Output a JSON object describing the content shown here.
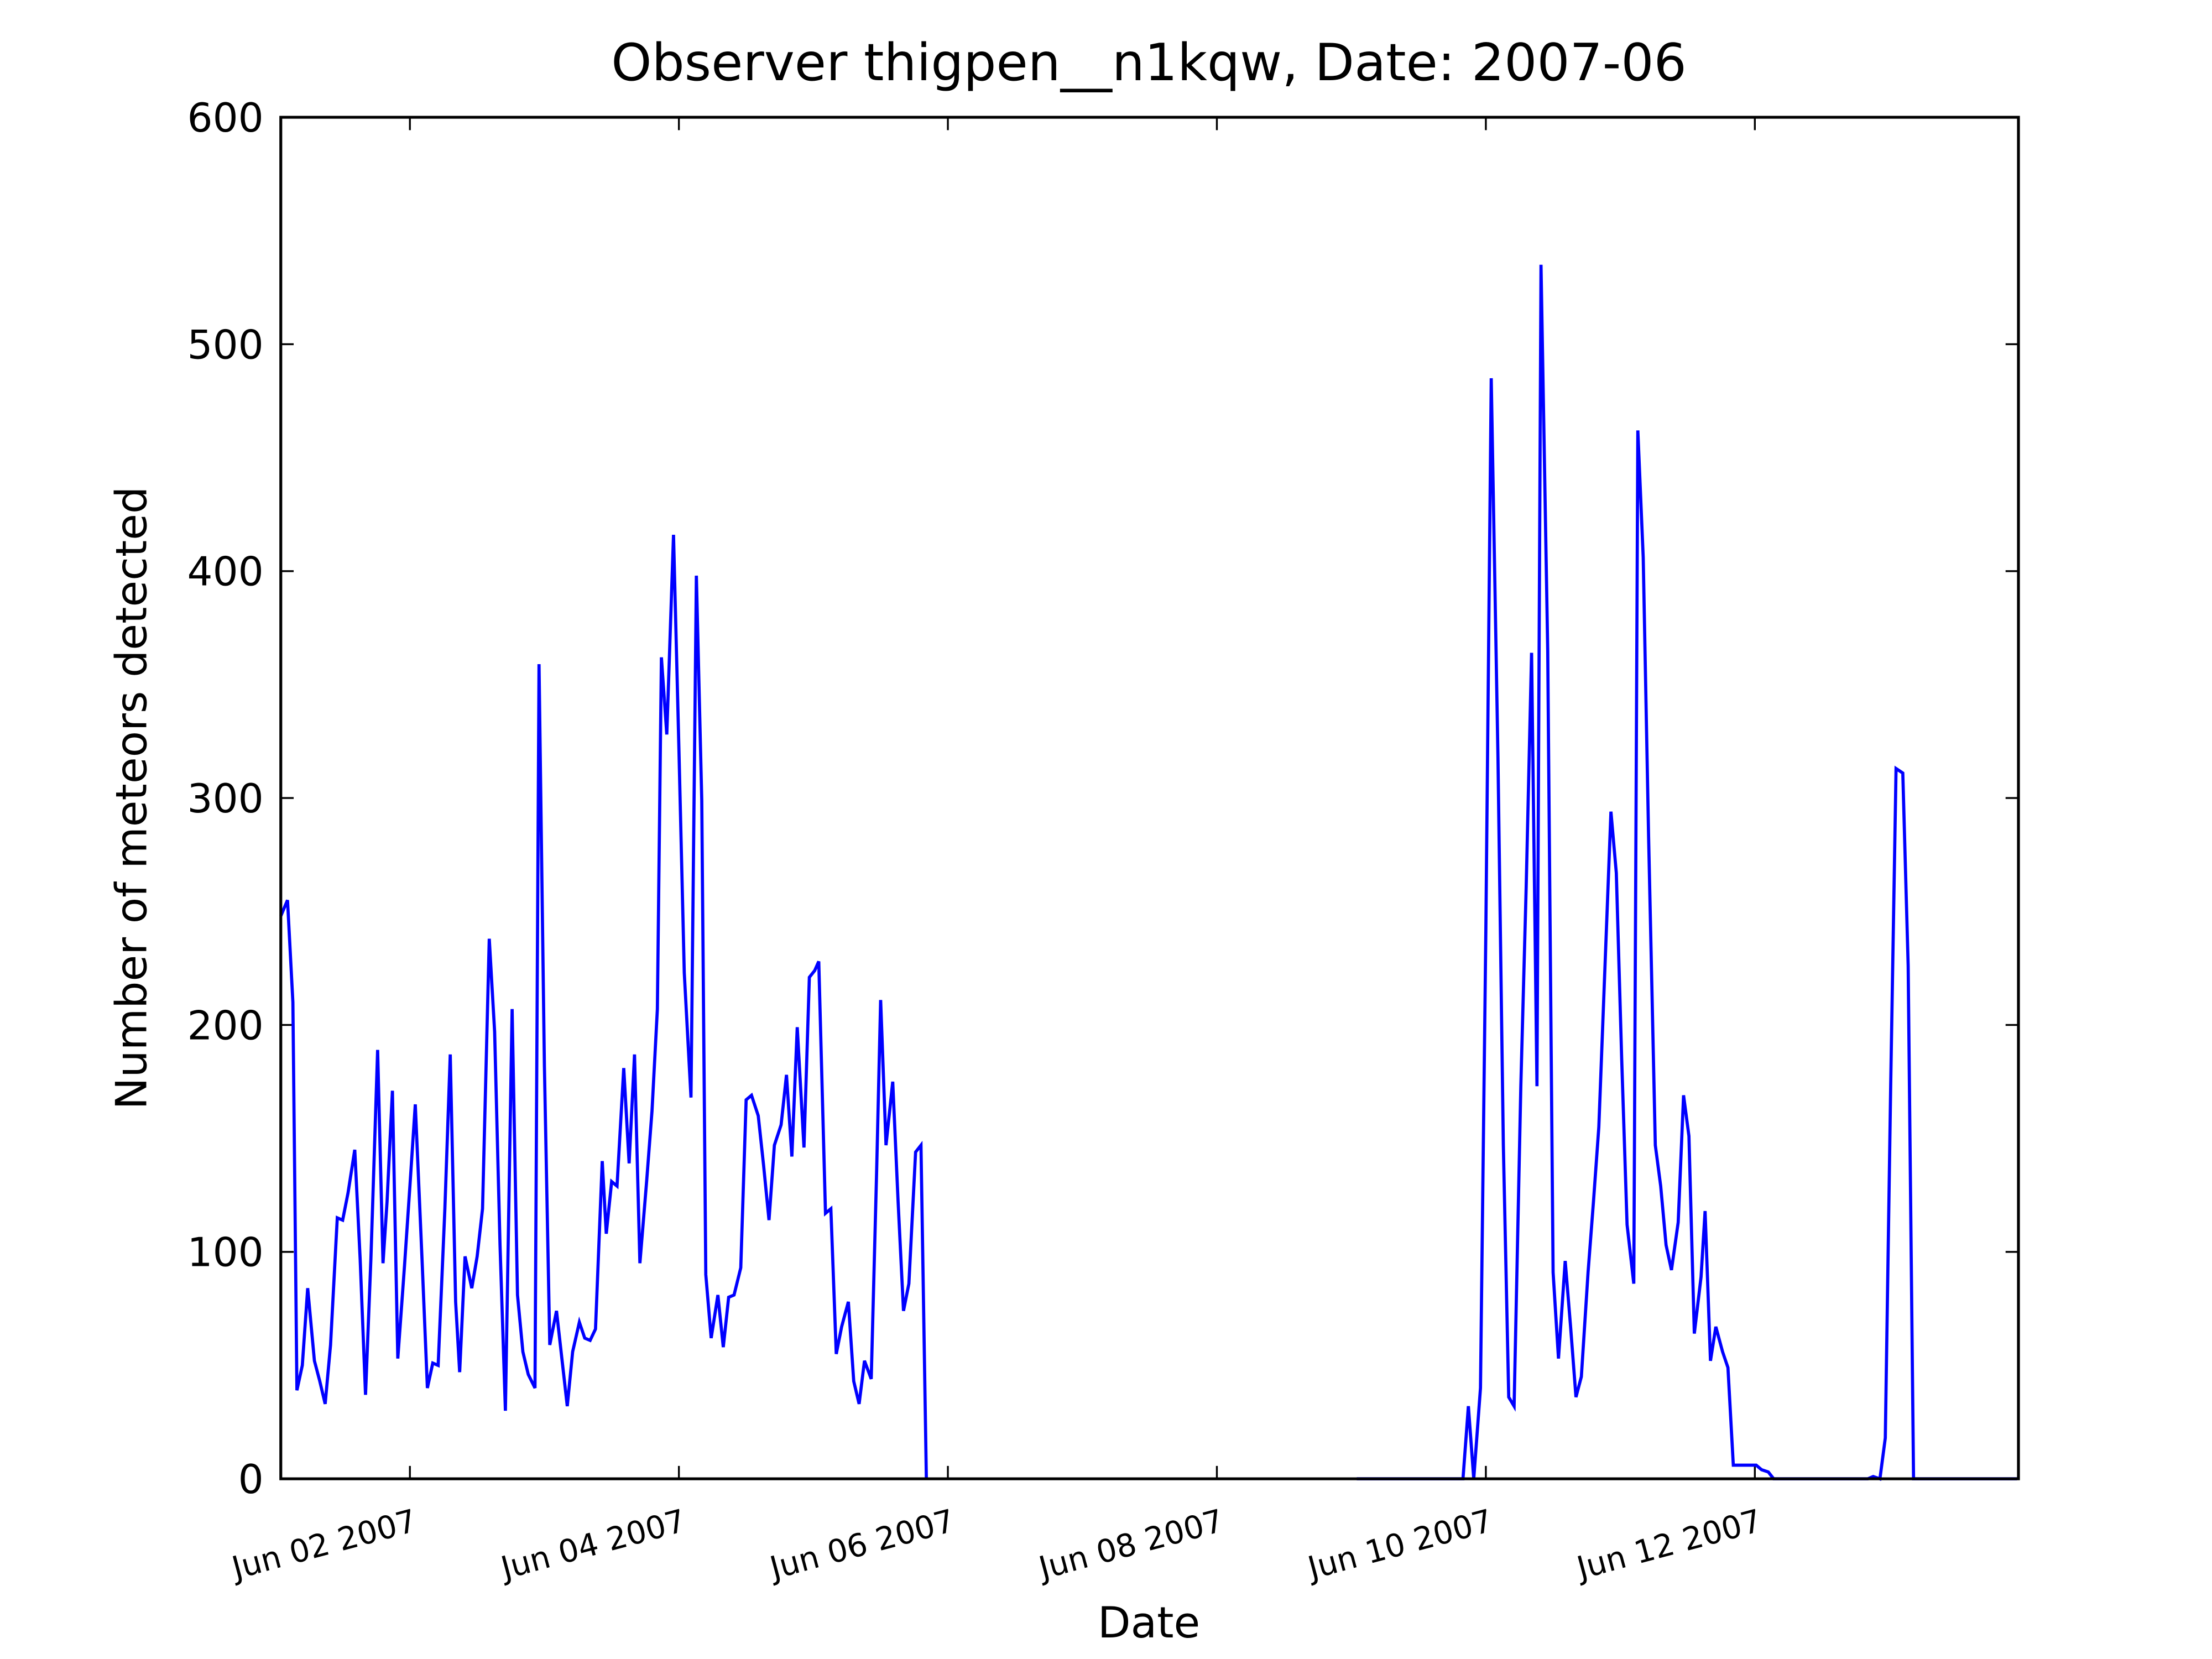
{
  "chart_data": {
    "type": "line",
    "title": "Observer thigpen__n1kqw, Date: 2007-06",
    "x_label": "Date",
    "y_label": "Number of meteors detected",
    "color": "#0000ff",
    "x": [
      1.04,
      1.09,
      1.13,
      1.16,
      1.2,
      1.24,
      1.29,
      1.33,
      1.37,
      1.41,
      1.46,
      1.5,
      1.54,
      1.59,
      1.63,
      1.67,
      1.71,
      1.76,
      1.8,
      1.83,
      1.87,
      1.91,
      1.96,
      2.0,
      2.04,
      2.09,
      2.13,
      2.17,
      2.21,
      2.26,
      2.3,
      2.34,
      2.37,
      2.41,
      2.46,
      2.5,
      2.54,
      2.59,
      2.63,
      2.67,
      2.71,
      2.76,
      2.8,
      2.84,
      2.88,
      2.93,
      2.96,
      3.0,
      3.04,
      3.09,
      3.13,
      3.17,
      3.21,
      3.26,
      3.3,
      3.34,
      3.38,
      3.43,
      3.46,
      3.5,
      3.54,
      3.59,
      3.63,
      3.67,
      3.71,
      3.76,
      3.8,
      3.84,
      3.87,
      3.91,
      3.96,
      4.0,
      4.04,
      4.09,
      4.13,
      4.17,
      4.2,
      4.24,
      4.29,
      4.33,
      4.37,
      4.41,
      4.46,
      4.5,
      4.54,
      4.59,
      4.63,
      4.67,
      4.71,
      4.76,
      4.8,
      4.84,
      4.88,
      4.93,
      4.97,
      5.01,
      5.04,
      5.09,
      5.13,
      5.17,
      5.21,
      5.26,
      5.3,
      5.34,
      5.38,
      5.43,
      5.47,
      5.5,
      5.54,
      5.59,
      5.63,
      5.67,
      5.71,
      5.76,
      5.8,
      5.84,
      null,
      9.04,
      9.83,
      9.87,
      9.91,
      9.96,
      10.0,
      10.04,
      10.09,
      10.13,
      10.17,
      10.21,
      10.26,
      10.3,
      10.34,
      10.38,
      10.41,
      10.46,
      10.5,
      10.54,
      10.59,
      10.63,
      10.67,
      10.71,
      10.76,
      10.8,
      10.84,
      10.88,
      10.93,
      10.97,
      11.01,
      11.05,
      11.1,
      11.13,
      11.17,
      11.21,
      11.26,
      11.3,
      11.34,
      11.38,
      11.43,
      11.47,
      11.51,
      11.55,
      11.6,
      11.63,
      11.67,
      11.71,
      11.76,
      11.8,
      11.84,
      11.88,
      11.93,
      11.97,
      12.01,
      12.05,
      12.1,
      12.14,
      12.84,
      12.88,
      12.93,
      12.97,
      13.01,
      13.05,
      13.1,
      13.14,
      13.18,
      13.95
    ],
    "values": [
      248,
      255,
      210,
      39,
      50,
      84,
      52,
      43,
      33,
      59,
      115,
      114,
      126,
      145,
      97,
      37,
      97,
      189,
      95,
      122,
      171,
      53,
      94,
      129,
      165,
      97,
      40,
      51,
      50,
      119,
      187,
      78,
      47,
      98,
      84,
      98,
      119,
      238,
      197,
      103,
      30,
      207,
      81,
      56,
      46,
      40,
      359,
      182,
      59,
      74,
      53,
      32,
      56,
      69,
      62,
      61,
      66,
      140,
      108,
      131,
      129,
      181,
      139,
      187,
      95,
      131,
      162,
      207,
      362,
      328,
      416,
      322,
      223,
      168,
      398,
      299,
      90,
      62,
      81,
      58,
      80,
      81,
      93,
      167,
      169,
      160,
      138,
      114,
      147,
      156,
      178,
      142,
      199,
      146,
      221,
      224,
      228,
      117,
      119,
      55,
      67,
      78,
      43,
      33,
      52,
      44,
      135,
      211,
      147,
      175,
      122,
      74,
      86,
      144,
      147,
      0,
      null,
      0,
      0,
      32,
      0,
      40,
      242,
      485,
      318,
      147,
      36,
      32,
      173,
      261,
      364,
      173,
      535,
      365,
      91,
      53,
      96,
      67,
      36,
      45,
      91,
      122,
      155,
      217,
      294,
      267,
      185,
      112,
      86,
      462,
      406,
      283,
      147,
      129,
      103,
      92,
      113,
      169,
      151,
      64,
      89,
      118,
      52,
      67,
      56,
      49,
      6,
      6,
      6,
      6,
      6,
      4,
      3,
      0,
      0,
      1,
      0,
      18,
      173,
      313,
      311,
      226,
      0,
      0
    ],
    "xlim": [
      1.04,
      13.96
    ],
    "xticks": [
      {
        "value": 2,
        "label": "Jun 02 2007"
      },
      {
        "value": 4,
        "label": "Jun 04 2007"
      },
      {
        "value": 6,
        "label": "Jun 06 2007"
      },
      {
        "value": 8,
        "label": "Jun 08 2007"
      },
      {
        "value": 10,
        "label": "Jun 10 2007"
      },
      {
        "value": 12,
        "label": "Jun 12 2007"
      }
    ],
    "ylim": [
      0,
      600
    ],
    "yticks": [
      0,
      100,
      200,
      300,
      400,
      500,
      600
    ],
    "grid": false
  }
}
